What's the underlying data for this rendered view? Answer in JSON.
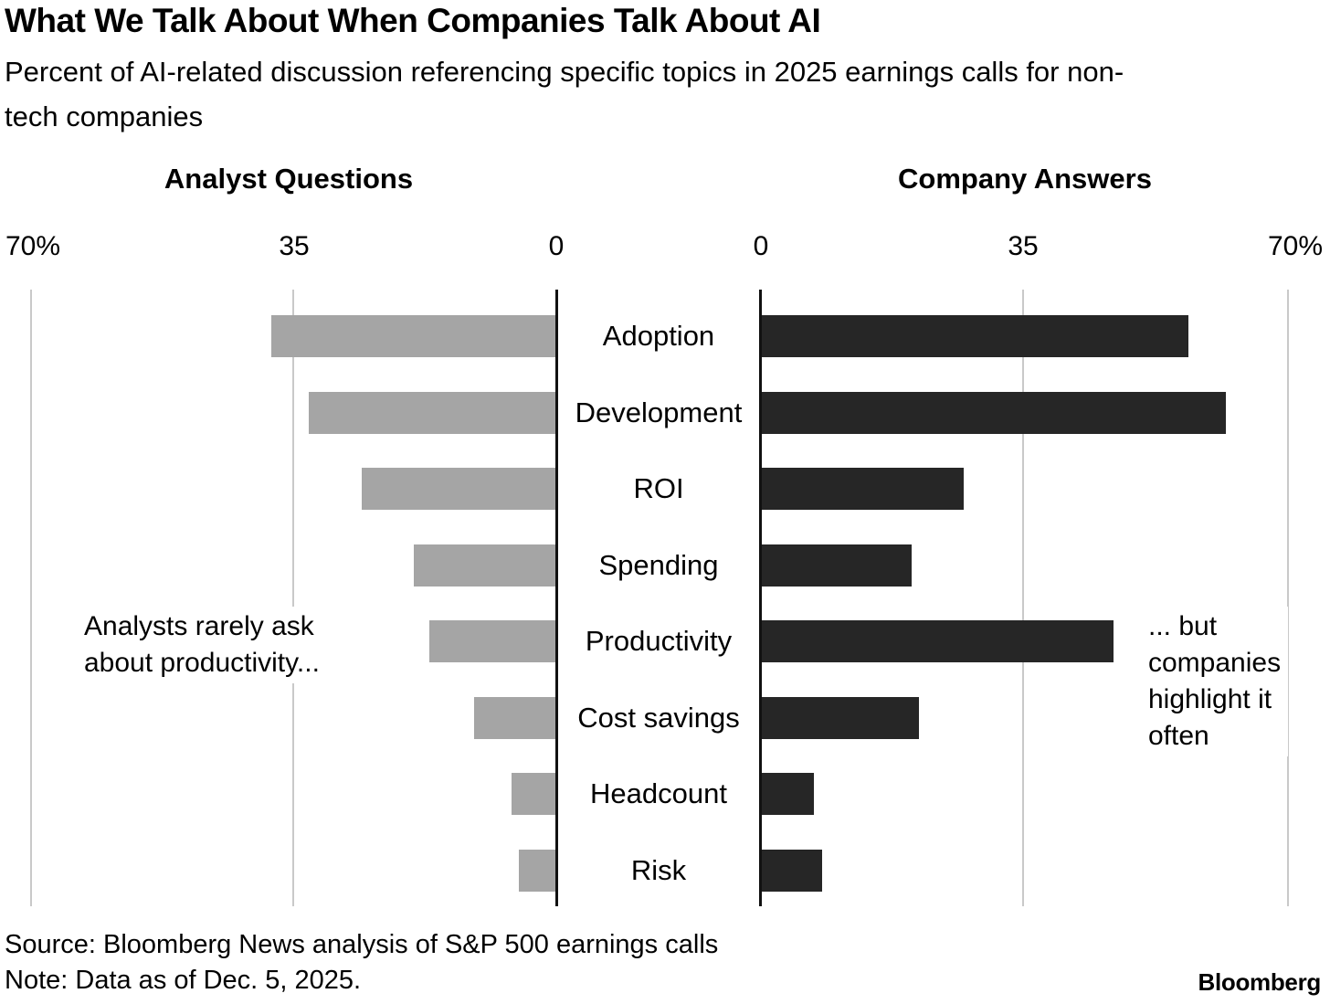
{
  "header": {
    "title": "What We Talk About When Companies Talk About AI",
    "subtitle": "Percent of AI-related discussion referencing specific topics in 2025 earnings calls for non-tech companies"
  },
  "panels": {
    "left_label": "Analyst Questions",
    "right_label": "Company Answers"
  },
  "axis": {
    "ticks": [
      "70%",
      "35",
      "0",
      "0",
      "35",
      "70%"
    ]
  },
  "annotations": {
    "left": "Analysts rarely ask\nabout productivity...",
    "right": "... but\ncompanies\nhighlight it\noften"
  },
  "footer": {
    "source": "Source: Bloomberg News analysis of S&P 500 earnings calls",
    "note": "Note: Data as of Dec. 5, 2025.",
    "logo": "Bloomberg"
  },
  "colors": {
    "analyst_bar": "#a5a5a5",
    "company_bar": "#262626",
    "gridline": "#c9c9c9",
    "axis": "#111111",
    "text": "#000000"
  },
  "chart_data": {
    "type": "bar",
    "variant": "diverging_horizontal",
    "title": "What We Talk About When Companies Talk About AI",
    "subtitle": "Percent of AI-related discussion referencing specific topics in 2025 earnings calls for non-tech companies",
    "categories": [
      "Adoption",
      "Development",
      "ROI",
      "Spending",
      "Productivity",
      "Cost savings",
      "Headcount",
      "Risk"
    ],
    "series": [
      {
        "name": "Analyst Questions",
        "side": "left",
        "color": "#a5a5a5",
        "values": [
          38,
          33,
          26,
          19,
          17,
          11,
          6,
          5
        ]
      },
      {
        "name": "Company Answers",
        "side": "right",
        "color": "#262626",
        "values": [
          57,
          62,
          27,
          20,
          47,
          21,
          7,
          8
        ]
      }
    ],
    "unit": "percent",
    "xlim": [
      0,
      70
    ],
    "tick_values": [
      0,
      35,
      70
    ],
    "grid": true,
    "legend_position": "column-headers",
    "annotations": [
      {
        "side": "left",
        "text": "Analysts rarely ask about productivity...",
        "near_category": "Productivity"
      },
      {
        "side": "right",
        "text": "... but companies highlight it often",
        "near_category": "Productivity"
      }
    ]
  }
}
